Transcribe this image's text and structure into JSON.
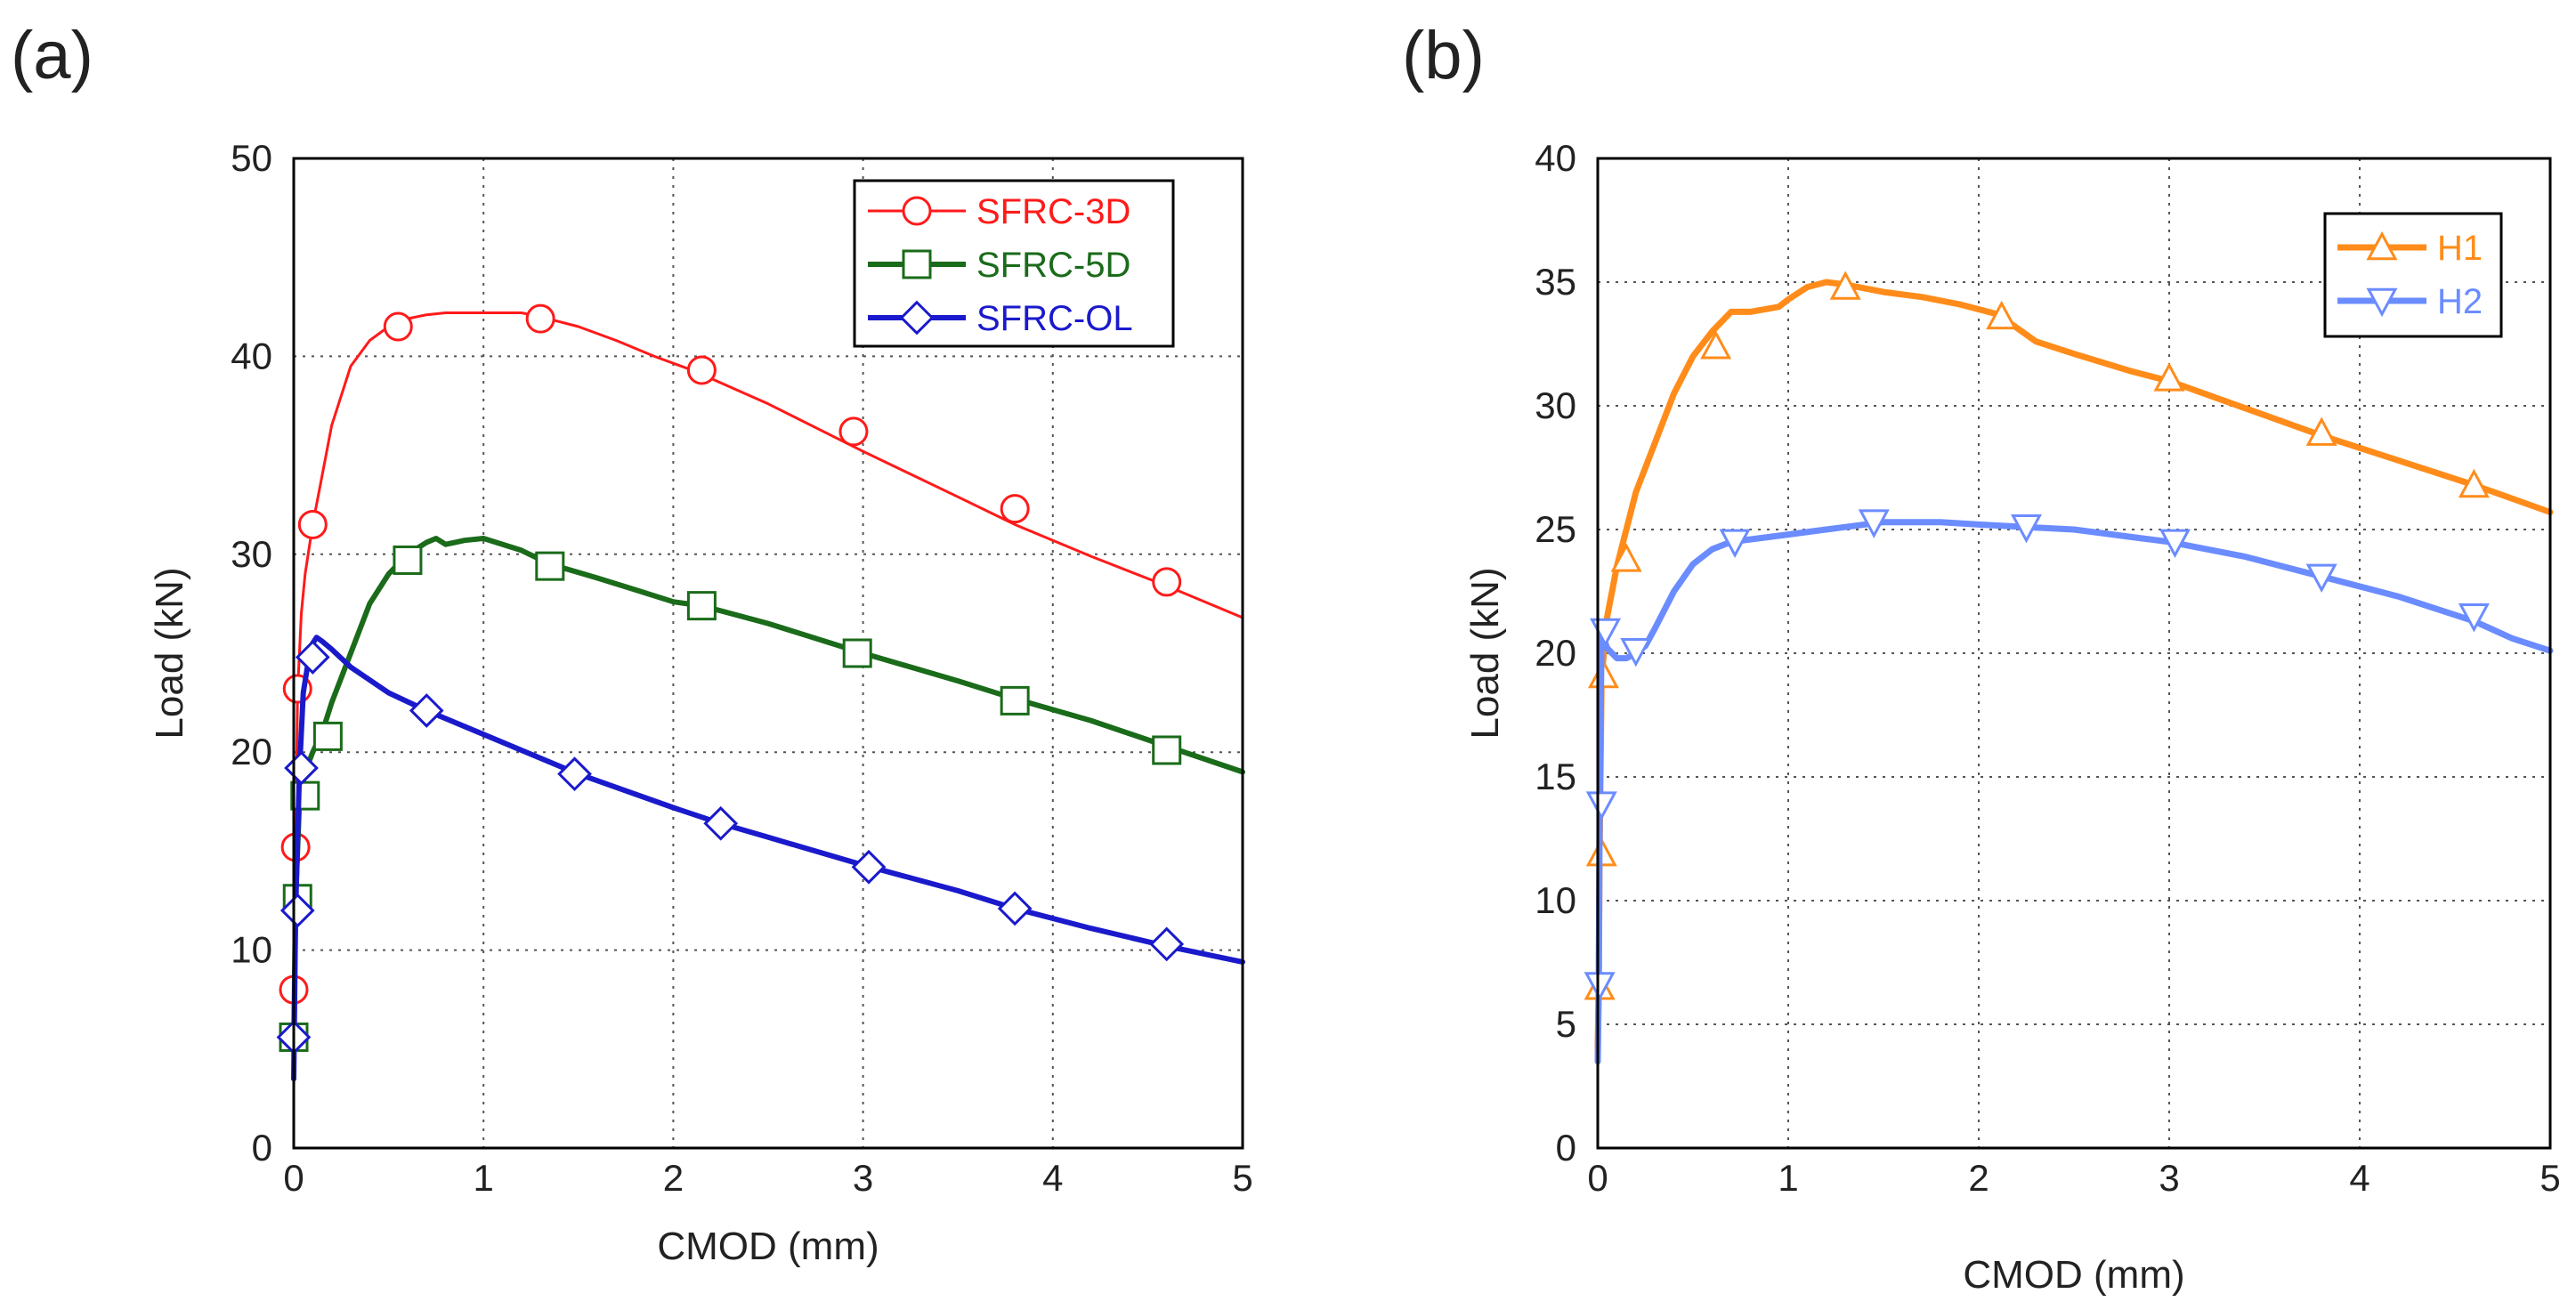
{
  "chart_data": [
    {
      "type": "line",
      "panel_label": "(a)",
      "xlabel": "CMOD  (mm)",
      "ylabel": "Load (kN)",
      "xlim": [
        0,
        5
      ],
      "ylim": [
        0,
        50
      ],
      "xticks": [
        "0",
        "1",
        "2",
        "3",
        "4",
        "5"
      ],
      "yticks": [
        "0",
        "10",
        "20",
        "30",
        "40",
        "50"
      ],
      "grid": true,
      "legend": "top-right",
      "series": [
        {
          "name": "SFRC-3D",
          "color": "#ff1a1a",
          "marker": "circle",
          "x": [
            0,
            0.005,
            0.01,
            0.02,
            0.04,
            0.06,
            0.1,
            0.15,
            0.2,
            0.3,
            0.4,
            0.5,
            0.6,
            0.7,
            0.8,
            1.0,
            1.2,
            1.3,
            1.5,
            1.7,
            1.9,
            2.1,
            2.5,
            3.0,
            3.5,
            3.8,
            4.2,
            4.6,
            5.0
          ],
          "y": [
            3,
            8,
            15,
            23,
            27,
            29,
            31.5,
            34,
            36.5,
            39.5,
            40.8,
            41.5,
            41.9,
            42.1,
            42.2,
            42.2,
            42.2,
            42.0,
            41.5,
            40.8,
            40.0,
            39.3,
            37.6,
            35.2,
            32.9,
            31.5,
            29.9,
            28.4,
            26.8
          ],
          "marker_x": [
            0,
            0.01,
            0.02,
            0.1,
            0.55,
            1.3,
            2.15,
            2.95,
            3.8,
            4.6
          ],
          "marker_y": [
            8,
            15.2,
            23.2,
            31.5,
            41.5,
            41.9,
            39.3,
            36.2,
            32.3,
            28.6
          ]
        },
        {
          "name": "SFRC-5D",
          "color": "#1a6b1a",
          "marker": "square",
          "x": [
            0,
            0.01,
            0.03,
            0.06,
            0.1,
            0.15,
            0.2,
            0.3,
            0.4,
            0.5,
            0.6,
            0.7,
            0.75,
            0.8,
            0.9,
            1.0,
            1.2,
            1.35,
            1.6,
            1.8,
            2.0,
            2.15,
            2.5,
            3.0,
            3.5,
            3.8,
            4.2,
            4.6,
            5.0
          ],
          "y": [
            5,
            12.5,
            17.5,
            19,
            20,
            21,
            22.5,
            25,
            27.5,
            29,
            30,
            30.6,
            30.8,
            30.5,
            30.7,
            30.8,
            30.2,
            29.5,
            28.8,
            28.2,
            27.6,
            27.4,
            26.5,
            25.0,
            23.6,
            22.7,
            21.6,
            20.3,
            19.0
          ],
          "marker_x": [
            0,
            0.02,
            0.06,
            0.18,
            0.6,
            1.35,
            2.15,
            2.97,
            3.8,
            4.6
          ],
          "marker_y": [
            5.6,
            12.6,
            17.8,
            20.8,
            29.7,
            29.4,
            27.4,
            25.0,
            22.6,
            20.1
          ]
        },
        {
          "name": "SFRC-OL",
          "color": "#1a1acc",
          "marker": "diamond",
          "x": [
            0,
            0.01,
            0.03,
            0.05,
            0.08,
            0.1,
            0.12,
            0.15,
            0.2,
            0.3,
            0.5,
            0.7,
            1.0,
            1.5,
            2.0,
            2.25,
            2.5,
            3.0,
            3.5,
            3.8,
            4.2,
            4.6,
            5.0
          ],
          "y": [
            3.5,
            12,
            19,
            23,
            24.8,
            25.5,
            25.8,
            25.6,
            25.2,
            24.3,
            23,
            22.1,
            20.9,
            18.9,
            17.2,
            16.4,
            15.7,
            14.3,
            13.0,
            12.1,
            11.1,
            10.2,
            9.4
          ],
          "marker_x": [
            0,
            0.02,
            0.04,
            0.1,
            0.7,
            1.48,
            2.25,
            3.03,
            3.8,
            4.6
          ],
          "marker_y": [
            5.6,
            12.0,
            19.2,
            24.8,
            22.1,
            18.9,
            16.4,
            14.2,
            12.1,
            10.3
          ]
        }
      ]
    },
    {
      "type": "line",
      "panel_label": "(b)",
      "xlabel": "CMOD  (mm)",
      "ylabel": "Load (kN)",
      "xlim": [
        0,
        5
      ],
      "ylim": [
        0,
        40
      ],
      "xticks": [
        "0",
        "1",
        "2",
        "3",
        "4",
        "5"
      ],
      "yticks": [
        "0",
        "5",
        "10",
        "15",
        "20",
        "25",
        "30",
        "35",
        "40"
      ],
      "grid": true,
      "legend": "top-right",
      "series": [
        {
          "name": "H1",
          "color": "#ff8c1a",
          "marker": "triangle-up",
          "x": [
            0,
            0.005,
            0.01,
            0.02,
            0.05,
            0.1,
            0.15,
            0.2,
            0.3,
            0.4,
            0.5,
            0.6,
            0.7,
            0.8,
            0.95,
            1.0,
            1.1,
            1.2,
            1.3,
            1.5,
            1.7,
            1.9,
            2.1,
            2.3,
            2.5,
            2.8,
            3.0,
            3.4,
            3.8,
            4.2,
            4.6,
            5.0
          ],
          "y": [
            4,
            6.5,
            12,
            19,
            21.5,
            23.5,
            25,
            26.5,
            28.5,
            30.5,
            32,
            33,
            33.8,
            33.8,
            34,
            34.3,
            34.8,
            35.0,
            34.9,
            34.6,
            34.4,
            34.1,
            33.7,
            32.6,
            32.1,
            31.4,
            31.0,
            29.9,
            28.8,
            27.8,
            26.8,
            25.7
          ],
          "marker_x": [
            0.01,
            0.02,
            0.03,
            0.15,
            0.62,
            1.3,
            2.12,
            3.0,
            3.8,
            4.6
          ],
          "marker_y": [
            6.5,
            11.9,
            19.1,
            23.8,
            32.4,
            34.8,
            33.6,
            31.1,
            28.9,
            26.8
          ],
          "marker_up": true
        },
        {
          "name": "H2",
          "color": "#6b8cff",
          "marker": "triangle-down",
          "x": [
            0,
            0.005,
            0.01,
            0.02,
            0.05,
            0.1,
            0.15,
            0.2,
            0.25,
            0.3,
            0.4,
            0.5,
            0.6,
            0.7,
            1.0,
            1.3,
            1.5,
            1.8,
            2.0,
            2.25,
            2.5,
            3.0,
            3.4,
            3.8,
            4.2,
            4.6,
            4.8,
            5.0
          ],
          "y": [
            3.5,
            6.5,
            13.5,
            20.8,
            20.2,
            19.8,
            19.8,
            20.0,
            20.3,
            21,
            22.5,
            23.6,
            24.2,
            24.5,
            24.8,
            25.1,
            25.3,
            25.3,
            25.2,
            25.1,
            25.0,
            24.5,
            23.9,
            23.1,
            22.3,
            21.3,
            20.6,
            20.1
          ],
          "marker_x": [
            0.01,
            0.02,
            0.04,
            0.2,
            0.72,
            1.45,
            2.25,
            3.03,
            3.8,
            4.6
          ],
          "marker_y": [
            6.6,
            13.9,
            20.9,
            20.1,
            24.5,
            25.3,
            25.1,
            24.5,
            23.1,
            21.5
          ],
          "marker_up": false
        }
      ]
    }
  ]
}
